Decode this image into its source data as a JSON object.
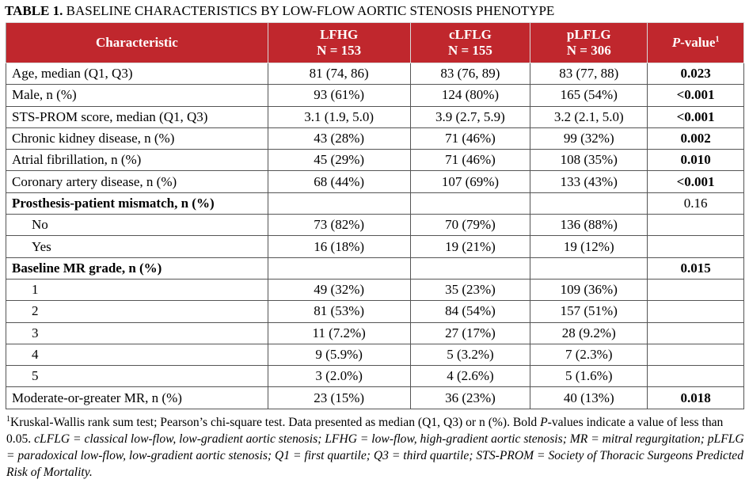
{
  "title": {
    "label": "TABLE 1.",
    "text": "BASELINE CHARACTERISTICS BY LOW-FLOW AORTIC STENOSIS PHENOTYPE"
  },
  "table": {
    "header": [
      {
        "name": "Characteristic"
      },
      {
        "name": "LFHG",
        "n": "N = 153"
      },
      {
        "name": "cLFLG",
        "n": "N = 155"
      },
      {
        "name": "pLFLG",
        "n": "N = 306"
      },
      {
        "p": "P",
        "name": "-value",
        "note": "1"
      }
    ],
    "rows": [
      {
        "label": "Age, median (Q1, Q3)",
        "cells": [
          "81 (74, 86)",
          "83 (76, 89)",
          "83 (77, 88)"
        ],
        "p_value": "0.023",
        "bold_p": true
      },
      {
        "label": "Male, n (%)",
        "cells": [
          "93 (61%)",
          "124 (80%)",
          "165 (54%)"
        ],
        "p_value": "<0.001",
        "bold_p": true
      },
      {
        "label": "STS-PROM score, median (Q1, Q3)",
        "cells": [
          "3.1 (1.9, 5.0)",
          "3.9 (2.7, 5.9)",
          "3.2 (2.1, 5.0)"
        ],
        "p_value": "<0.001",
        "bold_p": true
      },
      {
        "label": "Chronic kidney disease, n (%)",
        "cells": [
          "43 (28%)",
          "71 (46%)",
          "99 (32%)"
        ],
        "p_value": "0.002",
        "bold_p": true
      },
      {
        "label": "Atrial fibrillation, n (%)",
        "cells": [
          "45 (29%)",
          "71 (46%)",
          "108 (35%)"
        ],
        "p_value": "0.010",
        "bold_p": true
      },
      {
        "label": "Coronary artery disease, n (%)",
        "cells": [
          "68 (44%)",
          "107 (69%)",
          "133 (43%)"
        ],
        "p_value": "<0.001",
        "bold_p": true
      },
      {
        "label": "Prosthesis-patient mismatch, n (%)",
        "group": true,
        "cells": [
          null,
          null,
          null
        ],
        "p_value": "0.16",
        "bold_p": false
      },
      {
        "label": "No",
        "indent": true,
        "cells": [
          "73 (82%)",
          "70 (79%)",
          "136 (88%)"
        ],
        "p_value": null
      },
      {
        "label": "Yes",
        "indent": true,
        "cells": [
          "16 (18%)",
          "19 (21%)",
          "19 (12%)"
        ],
        "p_value": null
      },
      {
        "label": "Baseline MR grade, n (%)",
        "group": true,
        "cells": [
          null,
          null,
          null
        ],
        "p_value": "0.015",
        "bold_p": true
      },
      {
        "label": "1",
        "indent": true,
        "cells": [
          "49 (32%)",
          "35 (23%)",
          "109 (36%)"
        ],
        "p_value": null
      },
      {
        "label": "2",
        "indent": true,
        "cells": [
          "81 (53%)",
          "84 (54%)",
          "157 (51%)"
        ],
        "p_value": null
      },
      {
        "label": "3",
        "indent": true,
        "cells": [
          "11 (7.2%)",
          "27 (17%)",
          "28 (9.2%)"
        ],
        "p_value": null
      },
      {
        "label": "4",
        "indent": true,
        "cells": [
          "9 (5.9%)",
          "5 (3.2%)",
          "7 (2.3%)"
        ],
        "p_value": null
      },
      {
        "label": "5",
        "indent": true,
        "cells": [
          "3 (2.0%)",
          "4 (2.6%)",
          "5 (1.6%)"
        ],
        "p_value": null
      },
      {
        "label": "Moderate-or-greater MR, n (%)",
        "cells": [
          "23 (15%)",
          "36 (23%)",
          "40 (13%)"
        ],
        "p_value": "0.018",
        "bold_p": true
      }
    ]
  },
  "footnote": {
    "marker": "1",
    "text1": "Kruskal-Wallis rank sum test; Pearson’s chi-square test. Data presented as median (Q1, Q3) or n (%). Bold ",
    "p": "P",
    "text2": "-values indicate a value of less than 0.05. ",
    "abbreviations": "cLFLG = classical low-flow, low-gradient aortic stenosis; LFHG = low-flow, high-gradient aortic stenosis; MR = mitral regurgitation; pLFLG = paradoxical low-flow, low-gradient aortic stenosis; Q1 = first quartile; Q3 = third quartile; STS-PROM = Society of Thoracic Surgeons Predicted Risk of Mortality."
  }
}
